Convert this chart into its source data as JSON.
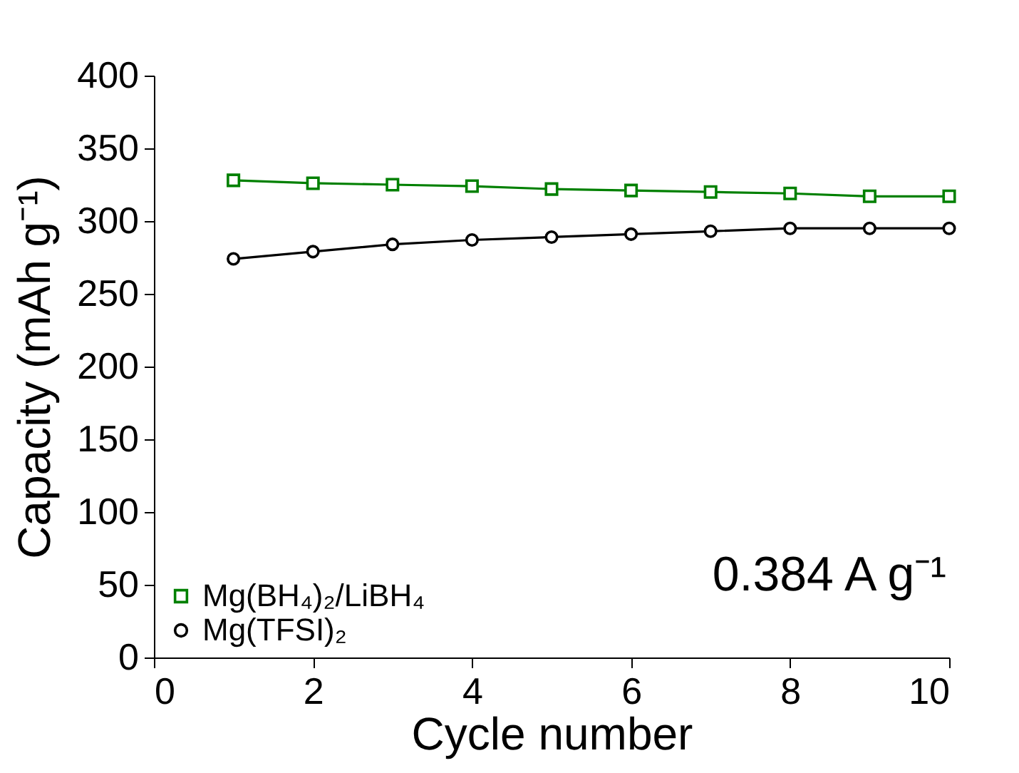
{
  "chart_data": {
    "type": "line",
    "xlabel": "Cycle number",
    "ylabel": "Capacity (mAh g⁻¹)",
    "x": [
      1,
      2,
      3,
      4,
      5,
      6,
      7,
      8,
      9,
      10
    ],
    "series": [
      {
        "name": "Mg(BH₄)₂/LiBH₄",
        "color": "#008000",
        "marker": "square",
        "values": [
          328,
          326,
          325,
          324,
          322,
          321,
          320,
          319,
          317,
          317
        ]
      },
      {
        "name": "Mg(TFSI)₂",
        "color": "#000000",
        "marker": "circle",
        "values": [
          274,
          279,
          284,
          287,
          289,
          291,
          293,
          295,
          295,
          295
        ]
      }
    ],
    "xlim": [
      0,
      10
    ],
    "xticks": [
      0,
      2,
      4,
      6,
      8,
      10
    ],
    "ylim": [
      0,
      400
    ],
    "yticks": [
      0,
      50,
      100,
      150,
      200,
      250,
      300,
      350,
      400
    ],
    "grid": false,
    "legend": "bottom left",
    "line_style": "solid",
    "annotations": [
      "0.384 A g⁻¹"
    ]
  }
}
